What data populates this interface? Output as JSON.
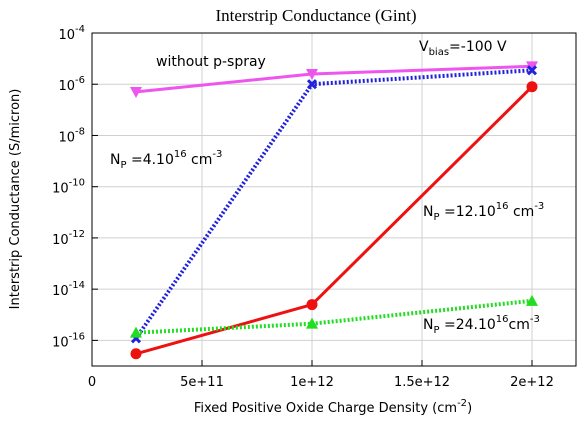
{
  "chart_data": {
    "type": "line",
    "title": "Interstrip Conductance (Gint)",
    "xlabel": "Fixed Positive Oxide Charge Density (cm",
    "xlabel_sup": "-2",
    "xlabel_end": ")",
    "ylabel": "Interstrip Conductance (S/micron)",
    "xlim": [
      0,
      2200000000000.0
    ],
    "ylim_exp": [
      -17,
      -4
    ],
    "y_scale": "log",
    "x_ticks": [
      {
        "value": 0,
        "label": "0"
      },
      {
        "value": 500000000000.0,
        "label": "5e+11"
      },
      {
        "value": 1000000000000.0,
        "label": "1e+12"
      },
      {
        "value": 1500000000000.0,
        "label": "1.5e+12"
      },
      {
        "value": 2000000000000.0,
        "label": "2e+12"
      }
    ],
    "y_ticks": [
      {
        "exp": -4,
        "base": "10",
        "sup": "-4"
      },
      {
        "exp": -6,
        "base": "10",
        "sup": "-6"
      },
      {
        "exp": -8,
        "base": "10",
        "sup": "-8"
      },
      {
        "exp": -10,
        "base": "10",
        "sup": "-10"
      },
      {
        "exp": -12,
        "base": "10",
        "sup": "-12"
      },
      {
        "exp": -14,
        "base": "10",
        "sup": "-14"
      },
      {
        "exp": -16,
        "base": "10",
        "sup": "-16"
      }
    ],
    "grid": true,
    "series": [
      {
        "key": "without",
        "color": "#ee55ee",
        "style": "solid",
        "marker": "triangle-down",
        "x": [
          200000000000.0,
          1000000000000.0,
          2000000000000.0
        ],
        "y": [
          5e-07,
          2.5e-06,
          5e-06
        ]
      },
      {
        "key": "np4",
        "color": "#2222dd",
        "style": "dotted",
        "marker": "x",
        "x": [
          200000000000.0,
          1000000000000.0,
          2000000000000.0
        ],
        "y": [
          1.2e-16,
          1e-06,
          3.5e-06
        ]
      },
      {
        "key": "np12",
        "color": "#ee1111",
        "style": "solid",
        "marker": "circle",
        "x": [
          200000000000.0,
          1000000000000.0,
          2000000000000.0
        ],
        "y": [
          3e-17,
          2.5e-15,
          8e-07
        ]
      },
      {
        "key": "np24",
        "color": "#22dd22",
        "style": "dotted",
        "marker": "triangle-up",
        "x": [
          200000000000.0,
          1000000000000.0,
          2000000000000.0
        ],
        "y": [
          2e-16,
          4.5e-16,
          3.5e-15
        ]
      }
    ],
    "annotations": {
      "without": "without p-spray",
      "vbias_main": "V",
      "vbias_sub": "bias",
      "vbias_val": "=-100 V",
      "np4_main": "N",
      "np4_sub": "P",
      "np4_val": " =4.10",
      "np4_sup": "16",
      "np4_unit": " cm",
      "np4_unit_sup": "-3",
      "np12_main": "N",
      "np12_sub": "P",
      "np12_val": " =12.10",
      "np12_sup": "16",
      "np12_unit": " cm",
      "np12_unit_sup": "-3",
      "np24_main": "N",
      "np24_sub": "P",
      "np24_val": " =24.10",
      "np24_sup": "16",
      "np24_unit": "cm",
      "np24_unit_sup": "-3"
    }
  }
}
